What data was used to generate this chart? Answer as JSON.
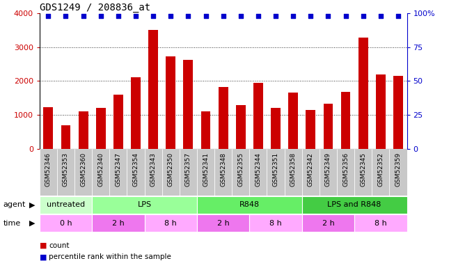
{
  "title": "GDS1249 / 208836_at",
  "samples": [
    "GSM52346",
    "GSM52353",
    "GSM52360",
    "GSM52340",
    "GSM52347",
    "GSM52354",
    "GSM52343",
    "GSM52350",
    "GSM52357",
    "GSM52341",
    "GSM52348",
    "GSM52355",
    "GSM52344",
    "GSM52351",
    "GSM52358",
    "GSM52342",
    "GSM52349",
    "GSM52356",
    "GSM52345",
    "GSM52352",
    "GSM52359"
  ],
  "counts": [
    1220,
    700,
    1100,
    1200,
    1600,
    2100,
    3500,
    2720,
    2620,
    1100,
    1830,
    1290,
    1950,
    1200,
    1650,
    1140,
    1320,
    1680,
    3270,
    2200,
    2150
  ],
  "bar_color": "#cc0000",
  "percentile_color": "#0000cc",
  "percentile_value": 98,
  "ylim_left": [
    0,
    4000
  ],
  "ylim_right": [
    0,
    100
  ],
  "yticks_left": [
    0,
    1000,
    2000,
    3000,
    4000
  ],
  "yticks_right": [
    0,
    25,
    50,
    75,
    100
  ],
  "ytick_labels_right": [
    "0",
    "25",
    "50",
    "75",
    "100%"
  ],
  "agent_groups": [
    {
      "label": "untreated",
      "start": 0,
      "end": 3,
      "color": "#ccffcc"
    },
    {
      "label": "LPS",
      "start": 3,
      "end": 9,
      "color": "#99ff99"
    },
    {
      "label": "R848",
      "start": 9,
      "end": 15,
      "color": "#66ee66"
    },
    {
      "label": "LPS and R848",
      "start": 15,
      "end": 21,
      "color": "#44cc44"
    }
  ],
  "time_groups": [
    {
      "label": "0 h",
      "start": 0,
      "end": 3,
      "color": "#ffaaff"
    },
    {
      "label": "2 h",
      "start": 3,
      "end": 6,
      "color": "#ee77ee"
    },
    {
      "label": "8 h",
      "start": 6,
      "end": 9,
      "color": "#ffaaff"
    },
    {
      "label": "2 h",
      "start": 9,
      "end": 12,
      "color": "#ee77ee"
    },
    {
      "label": "8 h",
      "start": 12,
      "end": 15,
      "color": "#ffaaff"
    },
    {
      "label": "2 h",
      "start": 15,
      "end": 18,
      "color": "#ee77ee"
    },
    {
      "label": "8 h",
      "start": 18,
      "end": 21,
      "color": "#ffaaff"
    }
  ],
  "plot_bg": "#ffffff",
  "fig_bg": "#ffffff",
  "xtick_bg": "#c8c8c8",
  "grid_dotted_color": "#333333",
  "legend_count_color": "#cc0000",
  "legend_pct_color": "#0000cc"
}
